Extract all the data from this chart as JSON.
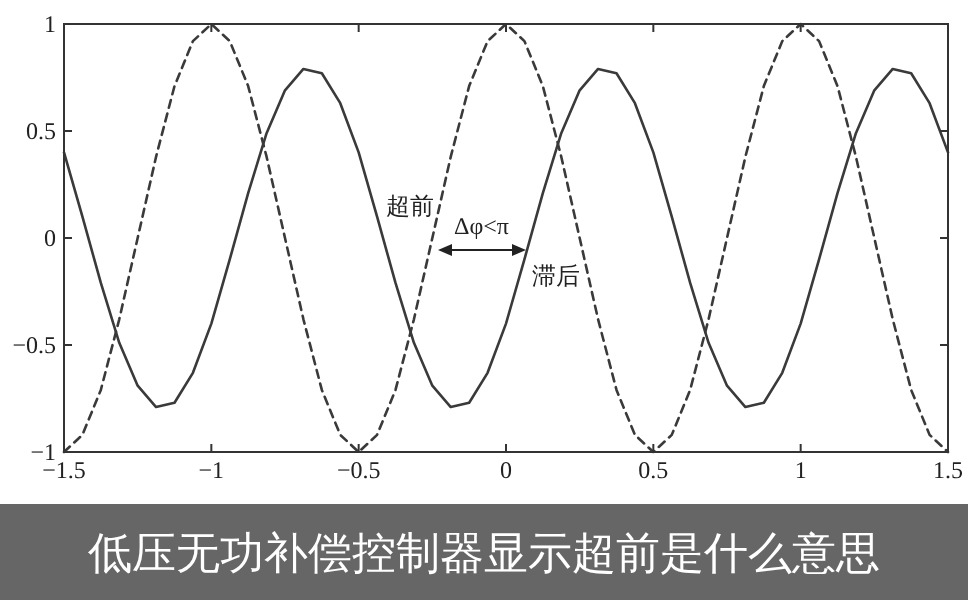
{
  "chart_data": {
    "type": "line",
    "title": "低压无功补偿控制器显示超前是什么意思",
    "x": [
      -1.5,
      -1.4375,
      -1.375,
      -1.3125,
      -1.25,
      -1.1875,
      -1.125,
      -1.0625,
      -1,
      -0.9375,
      -0.875,
      -0.8125,
      -0.75,
      -0.6875,
      -0.625,
      -0.5625,
      -0.5,
      -0.4375,
      -0.375,
      -0.3125,
      -0.25,
      -0.1875,
      -0.125,
      -0.0625,
      0,
      0.0625,
      0.125,
      0.1875,
      0.25,
      0.3125,
      0.375,
      0.4375,
      0.5,
      0.5625,
      0.625,
      0.6875,
      0.75,
      0.8125,
      0.875,
      0.9375,
      1,
      1.0625,
      1.125,
      1.1875,
      1.25,
      1.3125,
      1.375,
      1.4375,
      1.5
    ],
    "series": [
      {
        "color": "#3a3a3a",
        "line_style": "solid",
        "values": [
          0.4,
          0.1,
          -0.21,
          -0.49,
          -0.69,
          -0.79,
          -0.77,
          -0.63,
          -0.4,
          -0.1,
          0.21,
          0.49,
          0.69,
          0.79,
          0.77,
          0.63,
          0.4,
          0.1,
          -0.21,
          -0.49,
          -0.69,
          -0.79,
          -0.77,
          -0.63,
          -0.4,
          -0.1,
          0.21,
          0.49,
          0.69,
          0.79,
          0.77,
          0.63,
          0.4,
          0.1,
          -0.21,
          -0.49,
          -0.69,
          -0.79,
          -0.77,
          -0.63,
          -0.4,
          -0.1,
          0.21,
          0.49,
          0.69,
          0.79,
          0.77,
          0.63,
          0.4
        ]
      },
      {
        "color": "#3a3a3a",
        "line_style": "dashed",
        "values": [
          -1,
          -0.92,
          -0.71,
          -0.38,
          0,
          0.38,
          0.71,
          0.92,
          1,
          0.92,
          0.71,
          0.38,
          0,
          -0.38,
          -0.71,
          -0.92,
          -1,
          -0.92,
          -0.71,
          -0.38,
          0,
          0.38,
          0.71,
          0.92,
          1,
          0.92,
          0.71,
          0.38,
          0,
          -0.38,
          -0.71,
          -0.92,
          -1,
          -0.92,
          -0.71,
          -0.38,
          0,
          0.38,
          0.71,
          0.92,
          1,
          0.92,
          0.71,
          0.38,
          0,
          -0.38,
          -0.71,
          -0.92,
          -1
        ]
      }
    ],
    "xlim": [
      -1.5,
      1.5
    ],
    "ylim": [
      -1,
      1
    ],
    "xticks": [
      -1.5,
      -1,
      -0.5,
      0,
      0.5,
      1,
      1.5
    ],
    "yticks": [
      -1,
      -0.5,
      0,
      0.5,
      1
    ],
    "grid": false,
    "annotations": [
      "超前",
      "Δφ<π",
      "滞后"
    ]
  }
}
